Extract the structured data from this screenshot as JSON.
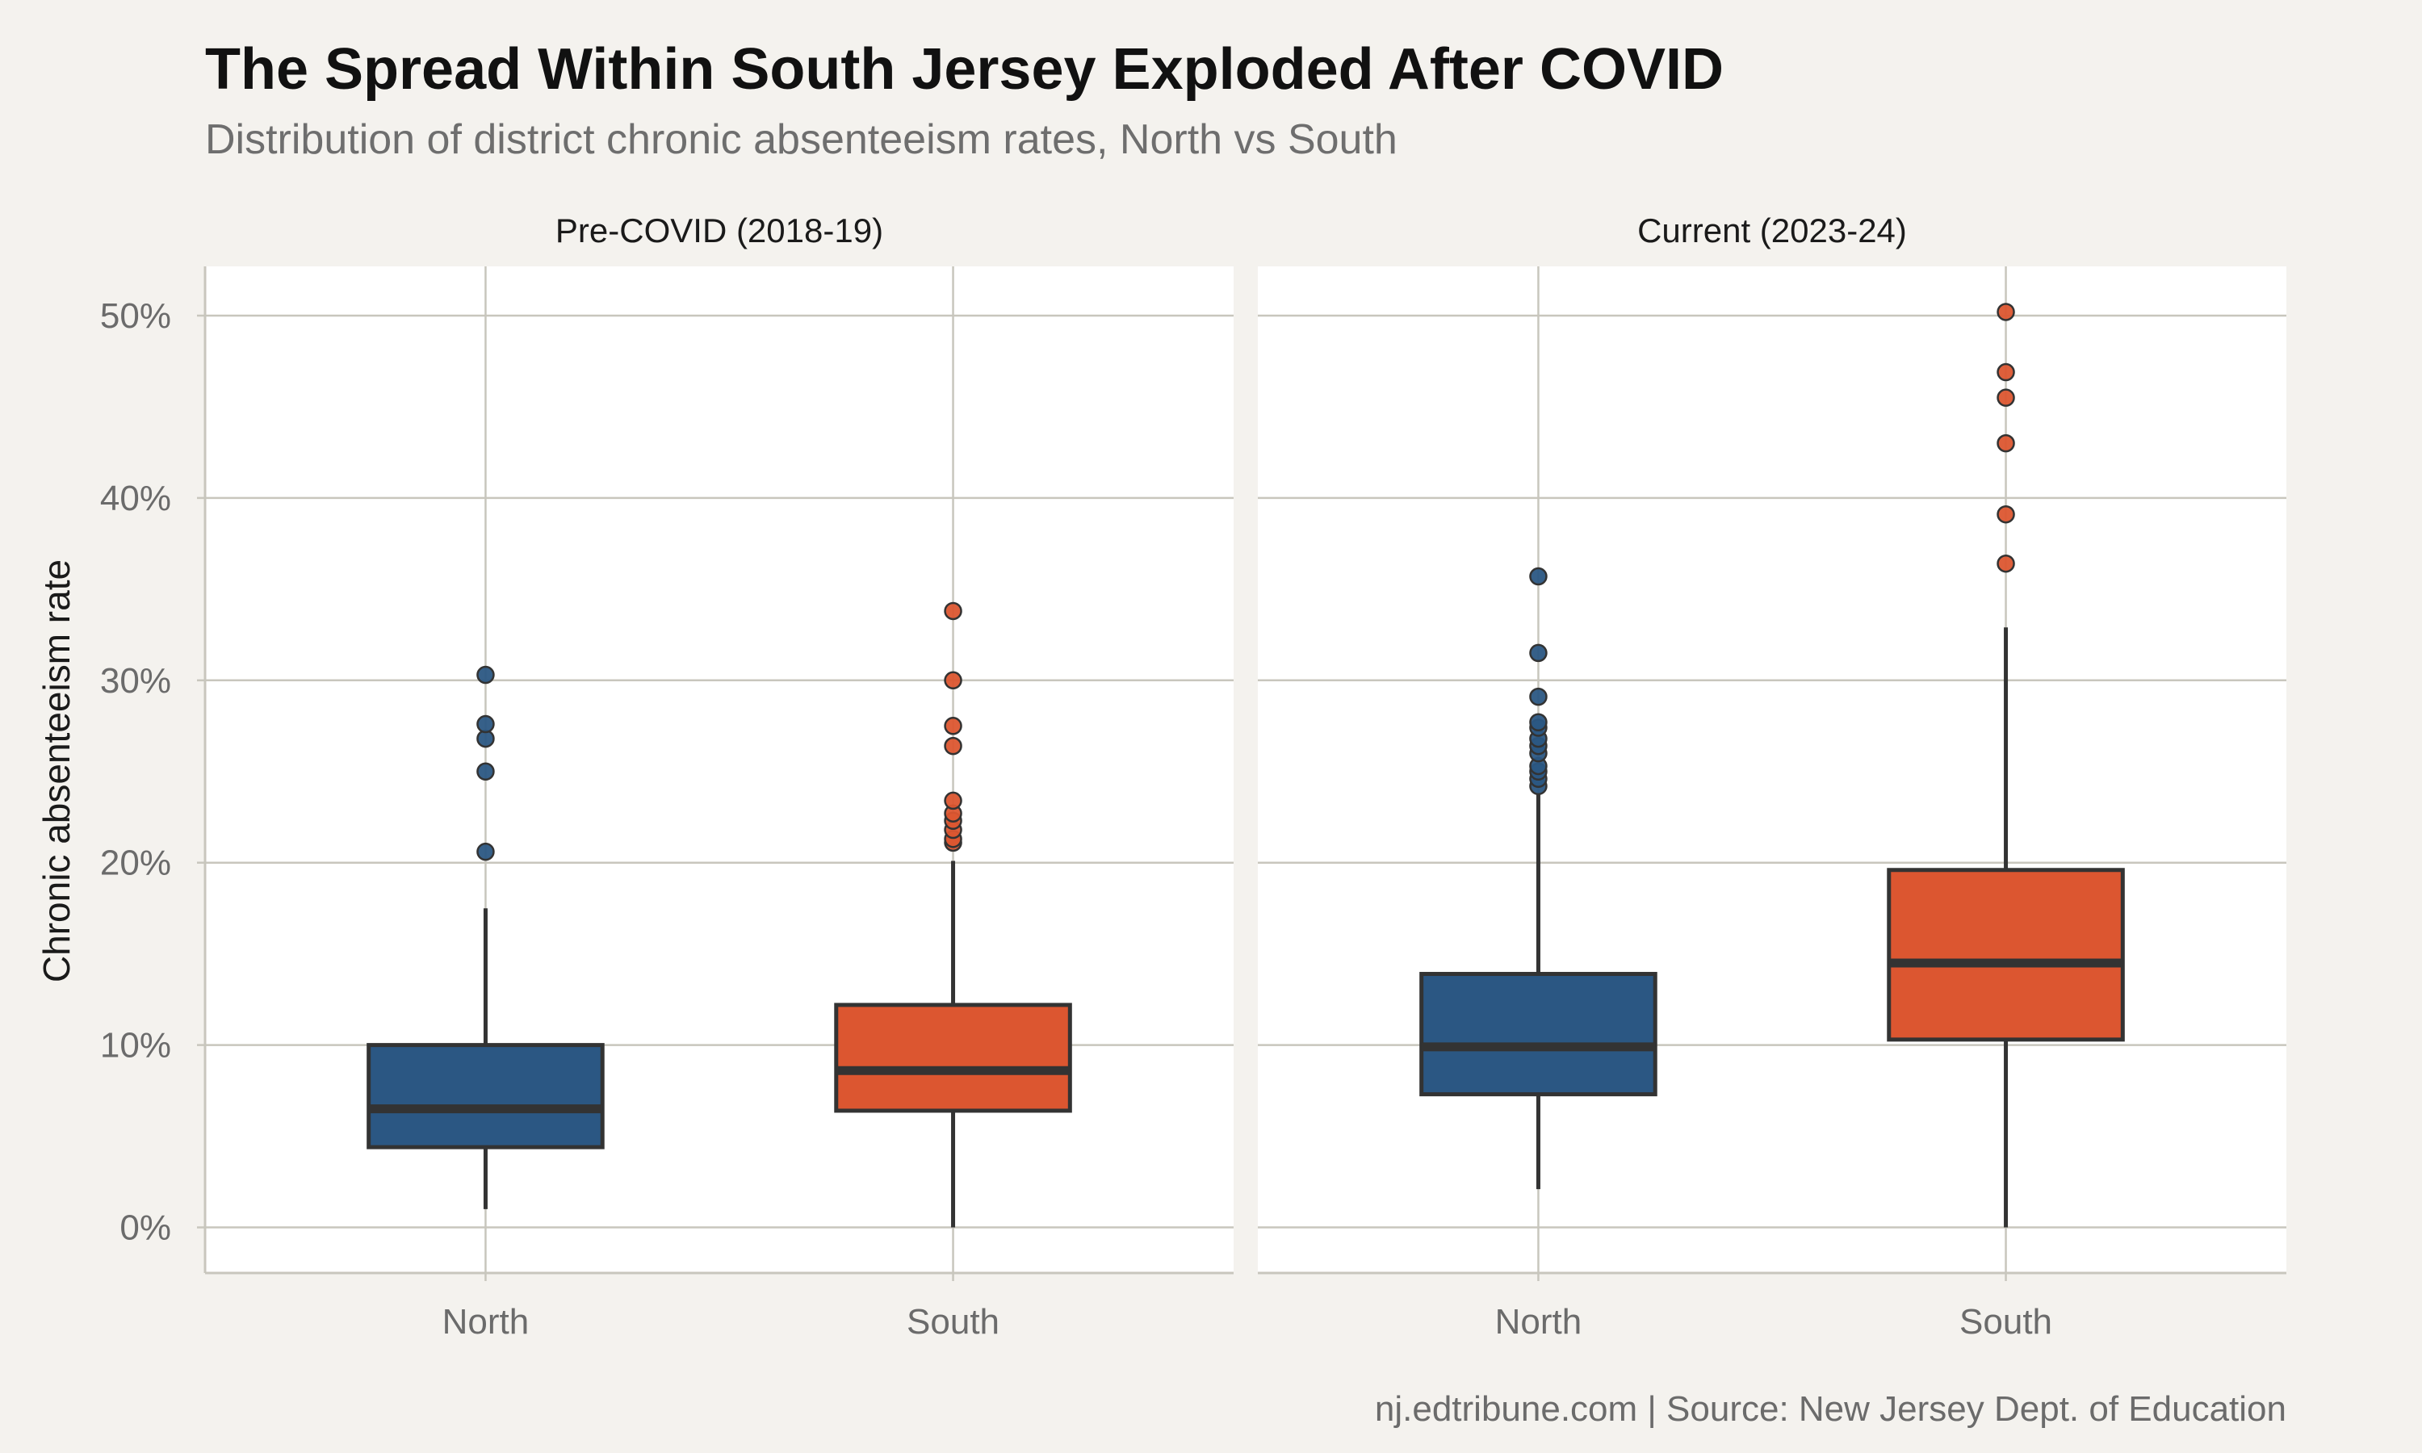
{
  "chart_data": {
    "type": "boxplot",
    "title": "The Spread Within South Jersey Exploded After COVID",
    "subtitle": "Distribution of district chronic absenteeism rates, North vs South",
    "ylabel": "Chronic absenteeism rate",
    "caption": "nj.edtribune.com | Source: New Jersey Dept. of Education",
    "categories": [
      "North",
      "South"
    ],
    "ylim": [
      -2.5,
      52.7
    ],
    "yticks": [
      0,
      10,
      20,
      30,
      40,
      50
    ],
    "ytick_labels": [
      "0%",
      "10%",
      "20%",
      "30%",
      "40%",
      "50%"
    ],
    "colors": {
      "North": "#2b5783",
      "South": "#dc5630"
    },
    "panels": [
      {
        "label": "Pre-COVID (2018-19)",
        "boxes": [
          {
            "category": "North",
            "whisker_low": 1.0,
            "q1": 4.4,
            "median": 6.5,
            "q3": 10.0,
            "whisker_high": 17.5,
            "outliers": [
              20.6,
              25.0,
              26.8,
              27.6,
              30.3
            ]
          },
          {
            "category": "South",
            "whisker_low": 0.0,
            "q1": 6.4,
            "median": 8.6,
            "q3": 12.2,
            "whisker_high": 20.1,
            "outliers": [
              21.1,
              21.3,
              21.8,
              22.3,
              22.7,
              23.4,
              26.4,
              27.5,
              30.0,
              33.8
            ]
          }
        ]
      },
      {
        "label": "Current (2023-24)",
        "boxes": [
          {
            "category": "North",
            "whisker_low": 2.1,
            "q1": 7.3,
            "median": 9.9,
            "q3": 13.9,
            "whisker_high": 23.8,
            "outliers": [
              24.2,
              24.6,
              25.0,
              25.3,
              26.0,
              26.4,
              26.8,
              27.4,
              27.7,
              29.1,
              31.5,
              35.7
            ]
          },
          {
            "category": "South",
            "whisker_low": 0.0,
            "q1": 10.3,
            "median": 14.5,
            "q3": 19.6,
            "whisker_high": 32.9,
            "outliers": [
              36.4,
              39.1,
              43.0,
              45.5,
              46.9,
              50.2
            ]
          }
        ]
      }
    ]
  }
}
